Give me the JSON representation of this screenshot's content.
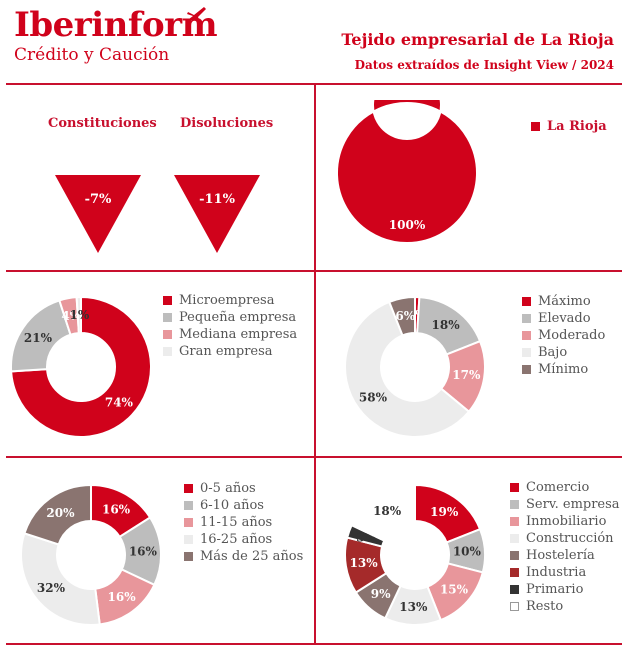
{
  "header": {
    "brand_name": "Iberinform",
    "brand_sub": "Crédito y Caución",
    "title": "Tejido empresarial de La Rioja",
    "subtitle": "Datos extraídos de Insight View / 2024"
  },
  "colors": {
    "accent": "#d0021b",
    "rule": "#c8102e"
  },
  "kpis": [
    {
      "label": "Constituciones",
      "value": "-7%"
    },
    {
      "label": "Disoluciones",
      "value": "-11%"
    }
  ],
  "chart_data": [
    {
      "id": "region",
      "type": "pie",
      "categories": [
        "La Rioja"
      ],
      "values": [
        100
      ],
      "colors": [
        "#d0021b"
      ],
      "labels": [
        "100%"
      ]
    },
    {
      "id": "tamano",
      "type": "pie",
      "categories": [
        "Microempresa",
        "Pequeña empresa",
        "Mediana empresa",
        "Gran empresa"
      ],
      "values": [
        74,
        21,
        4,
        1
      ],
      "colors": [
        "#d0021b",
        "#bdbdbd",
        "#e8969b",
        "#ececec"
      ],
      "labels": [
        "74%",
        "21%",
        "4%",
        "1%"
      ]
    },
    {
      "id": "riesgo",
      "type": "pie",
      "categories": [
        "Máximo",
        "Elevado",
        "Moderado",
        "Bajo",
        "Mínimo"
      ],
      "values": [
        1,
        18,
        17,
        58,
        6
      ],
      "colors": [
        "#d0021b",
        "#bdbdbd",
        "#e8969b",
        "#ececec",
        "#8a7470"
      ],
      "labels": [
        "1%",
        "18%",
        "17%",
        "58%",
        "6%"
      ]
    },
    {
      "id": "antiguedad",
      "type": "pie",
      "categories": [
        "0-5 años",
        "6-10 años",
        "11-15 años",
        "16-25 años",
        "Más de 25 años"
      ],
      "values": [
        16,
        16,
        16,
        32,
        20
      ],
      "colors": [
        "#d0021b",
        "#bdbdbd",
        "#e8969b",
        "#ececec",
        "#8a7470"
      ],
      "labels": [
        "16%",
        "16%",
        "16%",
        "32%",
        "20%"
      ]
    },
    {
      "id": "sector",
      "type": "pie",
      "categories": [
        "Comercio",
        "Serv. empresa",
        "Inmobiliario",
        "Construcción",
        "Hostelería",
        "Industria",
        "Primario",
        "Resto"
      ],
      "values": [
        19,
        10,
        15,
        13,
        9,
        13,
        3,
        18
      ],
      "colors": [
        "#d0021b",
        "#bdbdbd",
        "#e8969b",
        "#ececec",
        "#8a7470",
        "#a52a2a",
        "#333333",
        "#ffffff"
      ],
      "labels": [
        "19%",
        "10%",
        "15%",
        "13%",
        "9%",
        "13%",
        "3%",
        "18%"
      ]
    }
  ]
}
